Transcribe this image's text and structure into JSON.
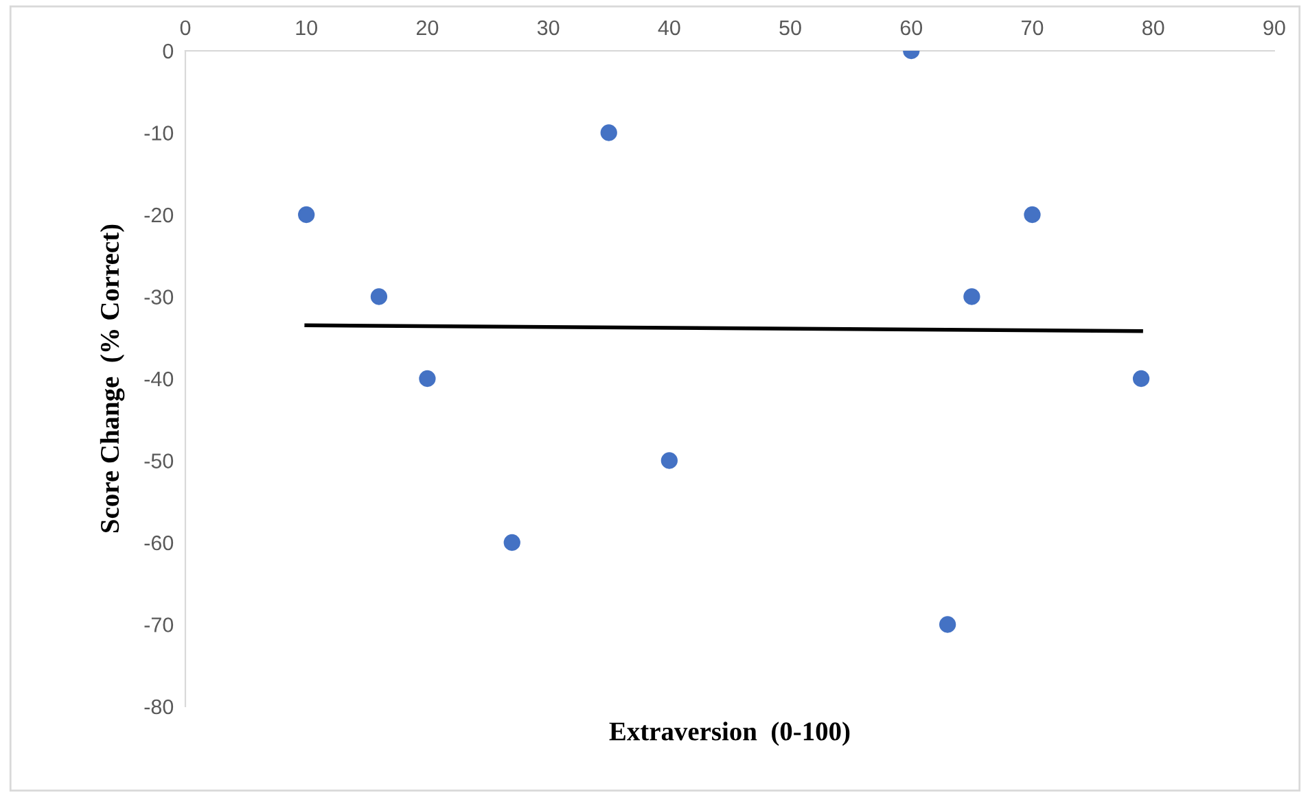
{
  "chart_data": {
    "type": "scatter",
    "xlabel": "Extraversion  (0-100)",
    "ylabel": "Score Change  (% Correct)",
    "xlim": [
      0,
      90
    ],
    "xticks": [
      0,
      10,
      20,
      30,
      40,
      50,
      60,
      70,
      80,
      90
    ],
    "ylim": [
      -80,
      0
    ],
    "yticks": [
      -80,
      -70,
      -60,
      -50,
      -40,
      -30,
      -20,
      -10,
      0
    ],
    "grid": false,
    "legend": false,
    "marker": "circle",
    "series": [
      {
        "color": "#4472c4",
        "x": [
          10,
          16,
          20,
          27,
          35,
          40,
          60,
          63,
          65,
          70,
          79
        ],
        "values": [
          -20,
          -30,
          -40,
          -60,
          -10,
          -50,
          0,
          -70,
          -30,
          -20,
          -40
        ]
      },
      {
        "type": "line",
        "color": "#000000",
        "line_style": "solid",
        "marker": "none",
        "x": [
          10,
          79
        ],
        "values": [
          -33.5,
          -34.2
        ]
      }
    ]
  }
}
